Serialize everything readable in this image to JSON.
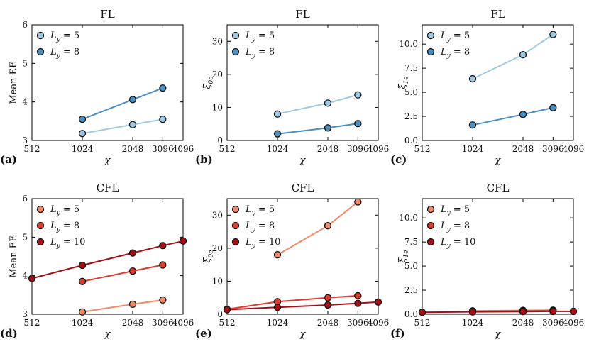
{
  "colors": {
    "fl_ly5": "#9ecae1",
    "fl_ly8": "#4a90c2",
    "cfl_ly5": "#f4896b",
    "cfl_ly8": "#dc3b2e",
    "cfl_ly10": "#a50f15"
  },
  "chart_data": [
    {
      "type": "line",
      "title": "FL",
      "panel_label": "(a)",
      "xlabel": "χ",
      "ylabel": "Mean EE",
      "xscale": "log2",
      "xlim": [
        512,
        4096
      ],
      "ylim": [
        3,
        6
      ],
      "xticks": [
        512,
        1024,
        2048,
        3096,
        4096
      ],
      "xtick_labels": [
        "512",
        "1024",
        "2048",
        "3096",
        "4096"
      ],
      "yticks": [
        3,
        4,
        5,
        6
      ],
      "ytick_labels": [
        "3",
        "4",
        "5",
        "6"
      ],
      "legend_loc": "upper-left",
      "series": [
        {
          "name": "L_y = 5",
          "legend_main": "L",
          "legend_sub": "y",
          "legend_rest": " = 5",
          "color_key": "fl_ly5",
          "x": [
            1024,
            2048,
            3096
          ],
          "y": [
            3.18,
            3.41,
            3.55
          ]
        },
        {
          "name": "L_y = 8",
          "legend_main": "L",
          "legend_sub": "y",
          "legend_rest": " = 8",
          "color_key": "fl_ly8",
          "x": [
            1024,
            2048,
            3096
          ],
          "y": [
            3.55,
            4.06,
            4.36
          ]
        }
      ]
    },
    {
      "type": "line",
      "title": "FL",
      "panel_label": "(b)",
      "xlabel": "χ",
      "ylabel": "ξ",
      "ylabel_sub": "0e",
      "xscale": "log2",
      "xlim": [
        512,
        4096
      ],
      "ylim": [
        0,
        35
      ],
      "xticks": [
        512,
        1024,
        2048,
        3096,
        4096
      ],
      "xtick_labels": [
        "512",
        "1024",
        "2048",
        "3096",
        "4096"
      ],
      "yticks": [
        0,
        10,
        20,
        30
      ],
      "ytick_labels": [
        "0",
        "10",
        "20",
        "30"
      ],
      "legend_loc": "upper-left",
      "series": [
        {
          "name": "L_y = 5",
          "legend_main": "L",
          "legend_sub": "y",
          "legend_rest": " = 5",
          "color_key": "fl_ly5",
          "x": [
            1024,
            2048,
            3096
          ],
          "y": [
            8.0,
            11.3,
            13.8
          ]
        },
        {
          "name": "L_y = 8",
          "legend_main": "L",
          "legend_sub": "y",
          "legend_rest": " = 8",
          "color_key": "fl_ly8",
          "x": [
            1024,
            2048,
            3096
          ],
          "y": [
            2.0,
            3.8,
            5.1
          ]
        }
      ]
    },
    {
      "type": "line",
      "title": "FL",
      "panel_label": "(c)",
      "xlabel": "χ",
      "ylabel": "ξ",
      "ylabel_sub": "1e",
      "xscale": "log2",
      "xlim": [
        512,
        4096
      ],
      "ylim": [
        0,
        12
      ],
      "xticks": [
        512,
        1024,
        2048,
        3096,
        4096
      ],
      "xtick_labels": [
        "512",
        "1024",
        "2048",
        "3096",
        "4096"
      ],
      "yticks": [
        0,
        2.5,
        5,
        7.5,
        10
      ],
      "ytick_labels": [
        "0.0",
        "2.5",
        "5.0",
        "7.5",
        "10.0"
      ],
      "legend_loc": "upper-left",
      "series": [
        {
          "name": "L_y = 5",
          "legend_main": "L",
          "legend_sub": "y",
          "legend_rest": " = 5",
          "color_key": "fl_ly5",
          "x": [
            1024,
            2048,
            3096
          ],
          "y": [
            6.4,
            8.9,
            11.0
          ]
        },
        {
          "name": "L_y = 8",
          "legend_main": "L",
          "legend_sub": "y",
          "legend_rest": " = 8",
          "color_key": "fl_ly8",
          "x": [
            1024,
            2048,
            3096
          ],
          "y": [
            1.6,
            2.7,
            3.4
          ]
        }
      ]
    },
    {
      "type": "line",
      "title": "CFL",
      "panel_label": "(d)",
      "xlabel": "χ",
      "ylabel": "Mean EE",
      "xscale": "log2",
      "xlim": [
        512,
        4096
      ],
      "ylim": [
        3,
        6
      ],
      "xticks": [
        512,
        1024,
        2048,
        3096,
        4096
      ],
      "xtick_labels": [
        "512",
        "1024",
        "2048",
        "3096",
        "4096"
      ],
      "yticks": [
        3,
        4,
        5,
        6
      ],
      "ytick_labels": [
        "3",
        "4",
        "5",
        "6"
      ],
      "legend_loc": "upper-left",
      "series": [
        {
          "name": "L_y = 5",
          "legend_main": "L",
          "legend_sub": "y",
          "legend_rest": " = 5",
          "color_key": "cfl_ly5",
          "x": [
            1024,
            2048,
            3096
          ],
          "y": [
            3.06,
            3.26,
            3.37
          ]
        },
        {
          "name": "L_y = 8",
          "legend_main": "L",
          "legend_sub": "y",
          "legend_rest": " = 8",
          "color_key": "cfl_ly8",
          "x": [
            1024,
            2048,
            3096
          ],
          "y": [
            3.85,
            4.12,
            4.28
          ]
        },
        {
          "name": "L_y = 10",
          "legend_main": "L",
          "legend_sub": "y",
          "legend_rest": " = 10",
          "color_key": "cfl_ly10",
          "x": [
            512,
            1024,
            2048,
            3096,
            4096
          ],
          "y": [
            3.93,
            4.27,
            4.59,
            4.78,
            4.9
          ]
        }
      ]
    },
    {
      "type": "line",
      "title": "CFL",
      "panel_label": "(e)",
      "xlabel": "χ",
      "ylabel": "ξ",
      "ylabel_sub": "0e",
      "xscale": "log2",
      "xlim": [
        512,
        4096
      ],
      "ylim": [
        0,
        35
      ],
      "xticks": [
        512,
        1024,
        2048,
        3096,
        4096
      ],
      "xtick_labels": [
        "512",
        "1024",
        "2048",
        "3096",
        "4096"
      ],
      "yticks": [
        0,
        10,
        20,
        30
      ],
      "ytick_labels": [
        "0",
        "10",
        "20",
        "30"
      ],
      "legend_loc": "upper-left",
      "series": [
        {
          "name": "L_y = 5",
          "legend_main": "L",
          "legend_sub": "y",
          "legend_rest": " = 5",
          "color_key": "cfl_ly5",
          "x": [
            1024,
            2048,
            3096
          ],
          "y": [
            18.0,
            26.8,
            34.0
          ]
        },
        {
          "name": "L_y = 8",
          "legend_main": "L",
          "legend_sub": "y",
          "legend_rest": " = 8",
          "color_key": "cfl_ly8",
          "x": [
            512,
            1024,
            2048,
            3096
          ],
          "y": [
            1.5,
            3.8,
            5.0,
            5.6
          ]
        },
        {
          "name": "L_y = 10",
          "legend_main": "L",
          "legend_sub": "y",
          "legend_rest": " = 10",
          "color_key": "cfl_ly10",
          "x": [
            512,
            1024,
            2048,
            3096,
            4096
          ],
          "y": [
            1.4,
            2.1,
            2.8,
            3.3,
            3.7
          ]
        }
      ]
    },
    {
      "type": "line",
      "title": "CFL",
      "panel_label": "(f)",
      "xlabel": "χ",
      "ylabel": "ξ",
      "ylabel_sub": "1e",
      "xscale": "log2",
      "xlim": [
        512,
        4096
      ],
      "ylim": [
        0,
        12
      ],
      "xticks": [
        512,
        1024,
        2048,
        3096,
        4096
      ],
      "xtick_labels": [
        "512",
        "1024",
        "2048",
        "3096",
        "4096"
      ],
      "yticks": [
        0,
        2.5,
        5,
        7.5,
        10
      ],
      "ytick_labels": [
        "0.0",
        "2.5",
        "5.0",
        "7.5",
        "10.0"
      ],
      "legend_loc": "upper-left",
      "series": [
        {
          "name": "L_y = 5",
          "legend_main": "L",
          "legend_sub": "y",
          "legend_rest": " = 5",
          "color_key": "cfl_ly5",
          "x": [
            1024,
            2048,
            3096
          ],
          "y": [
            0.35,
            0.4,
            0.42
          ]
        },
        {
          "name": "L_y = 8",
          "legend_main": "L",
          "legend_sub": "y",
          "legend_rest": " = 8",
          "color_key": "cfl_ly8",
          "x": [
            1024,
            2048,
            3096
          ],
          "y": [
            0.3,
            0.35,
            0.38
          ]
        },
        {
          "name": "L_y = 10",
          "legend_main": "L",
          "legend_sub": "y",
          "legend_rest": " = 10",
          "color_key": "cfl_ly10",
          "x": [
            512,
            1024,
            2048,
            3096,
            4096
          ],
          "y": [
            0.2,
            0.25,
            0.28,
            0.3,
            0.3
          ]
        }
      ]
    }
  ]
}
